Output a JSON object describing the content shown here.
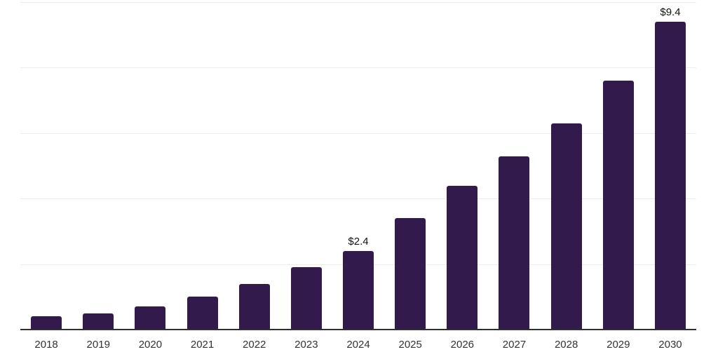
{
  "chart_data": {
    "type": "bar",
    "title": "",
    "categories": [
      "2018",
      "2019",
      "2020",
      "2021",
      "2022",
      "2023",
      "2024",
      "2025",
      "2026",
      "2027",
      "2028",
      "2029",
      "2030"
    ],
    "values": [
      0.4,
      0.5,
      0.7,
      1.0,
      1.4,
      1.9,
      2.4,
      3.4,
      4.4,
      5.3,
      6.3,
      7.6,
      9.4
    ],
    "data_labels": {
      "2024": "$2.4",
      "2030": "$9.4"
    },
    "xlabel": "",
    "ylabel": "",
    "ylim": [
      0,
      10
    ],
    "gridline_step": 2,
    "grid": true,
    "legend": false,
    "y_tick_labels_shown": false,
    "colors": {
      "bar": "#321a4d",
      "gridline": "#ededed",
      "axis_line": "#2f2f2f",
      "tick_label": "#333333",
      "data_label": "#111111",
      "background": "#ffffff"
    }
  }
}
